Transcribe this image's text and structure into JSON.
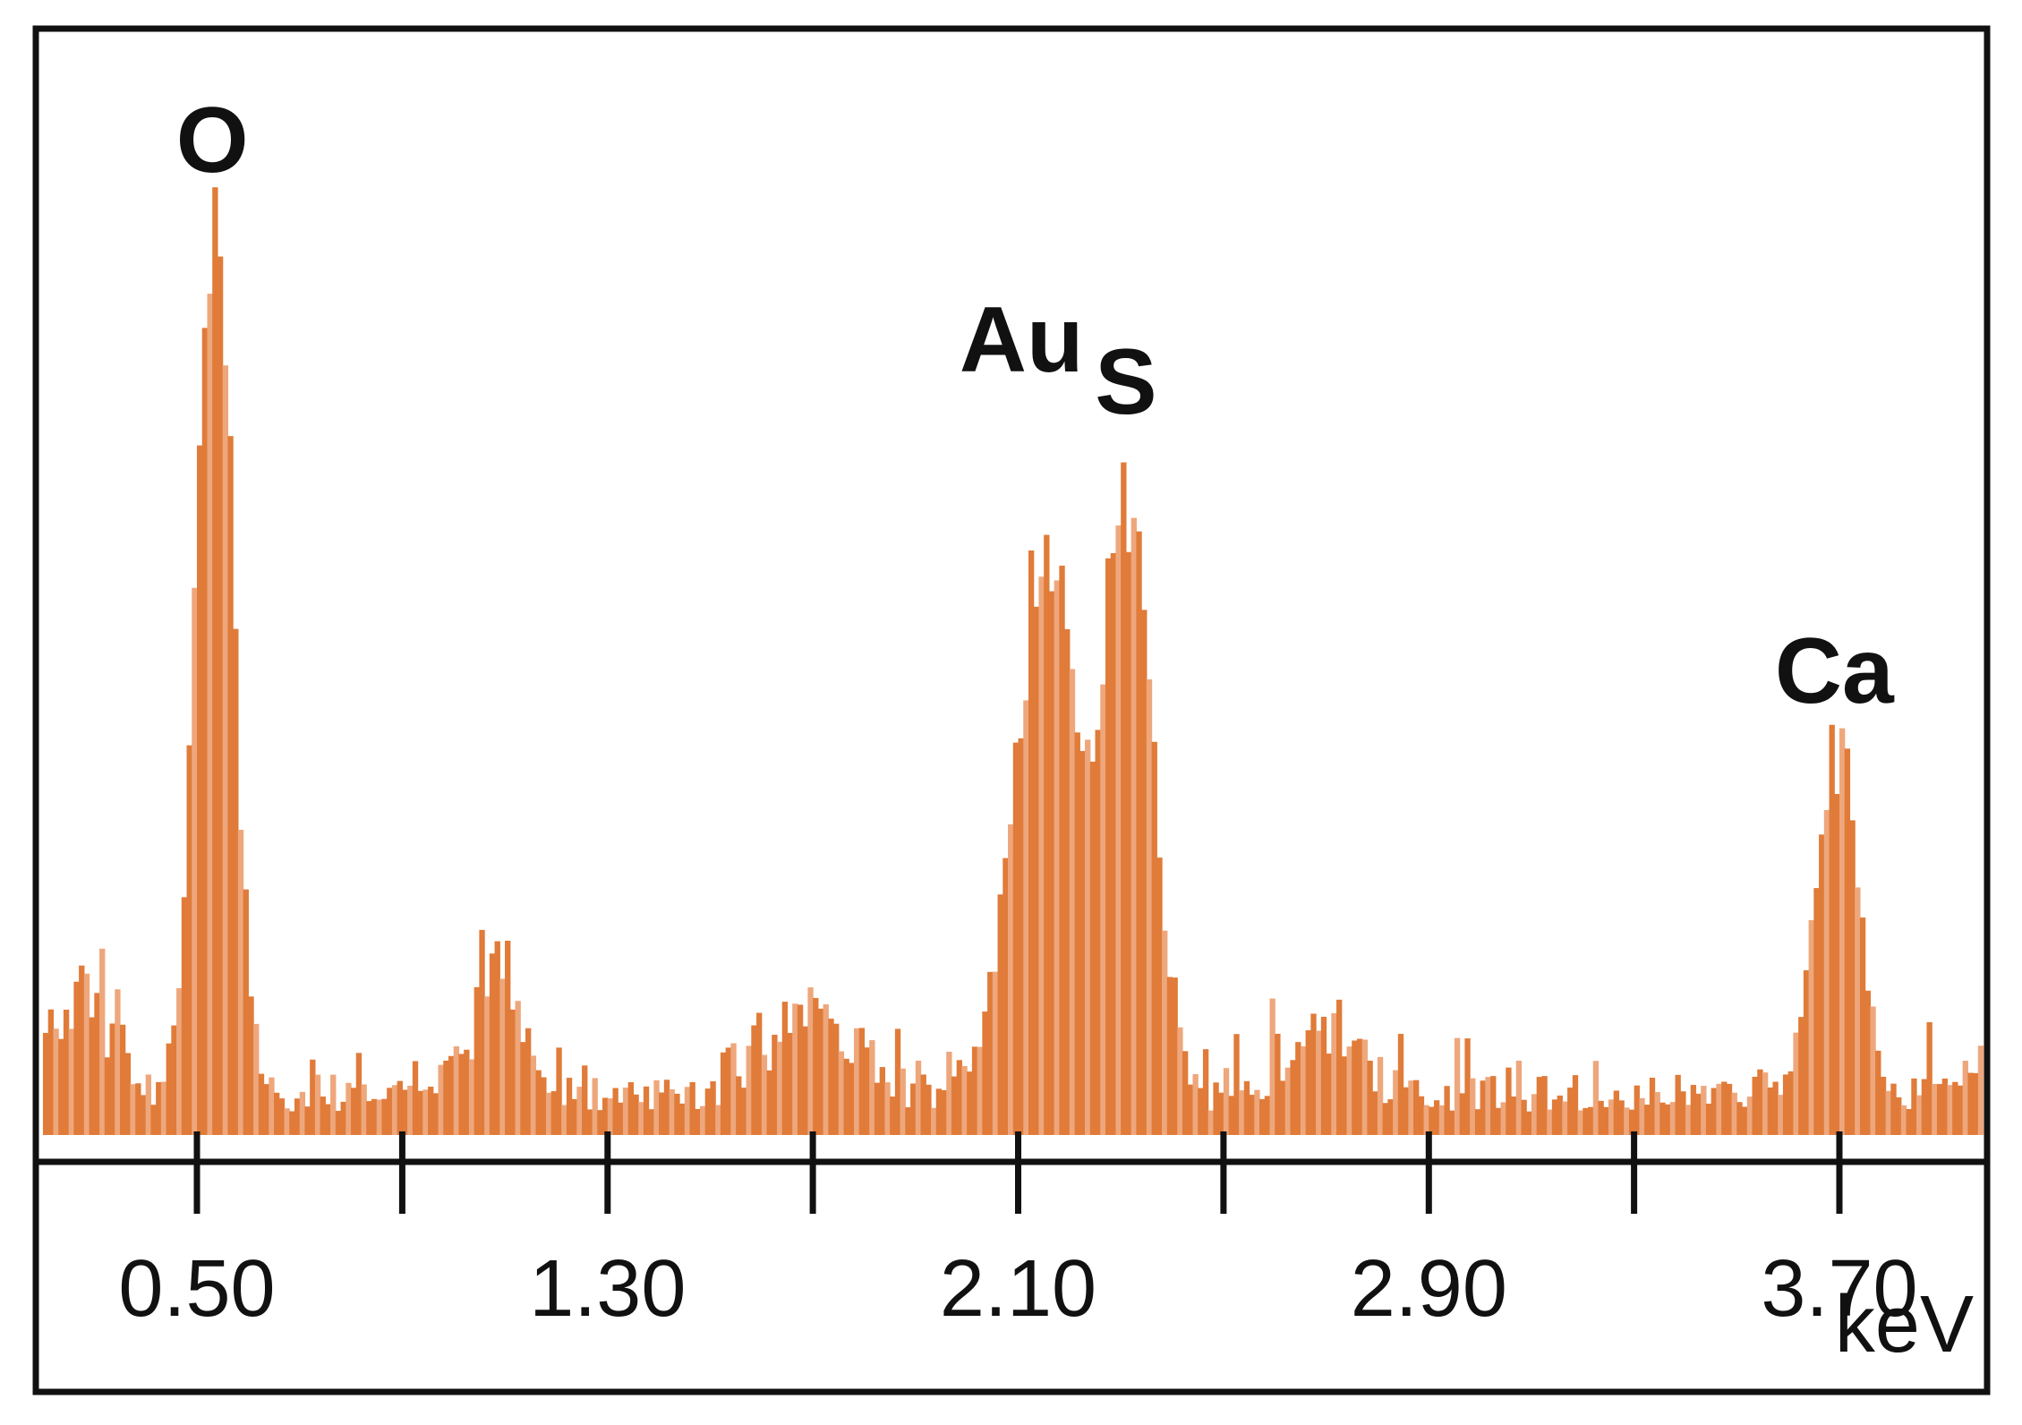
{
  "chart_data": {
    "type": "bar",
    "title": "",
    "xlabel": "keV",
    "ylabel": "",
    "xlim": [
      0.18,
      4.43
    ],
    "ylim": [
      0,
      1.2
    ],
    "grid": false,
    "legend": "none",
    "colors": {
      "bars": "#e07b39",
      "bars_light": "#eea77c",
      "axis": "#111111",
      "frame": "#111111",
      "background": "#ffffff"
    },
    "x_ticks": [
      0.5,
      0.9,
      1.3,
      1.7,
      2.1,
      2.5,
      2.9,
      3.3,
      3.7,
      4.1
    ],
    "x_tick_labels": [
      {
        "x": 0.5,
        "label": "0.50"
      },
      {
        "x": 1.3,
        "label": "1.30"
      },
      {
        "x": 2.1,
        "label": "2.10"
      },
      {
        "x": 2.9,
        "label": "2.90"
      },
      {
        "x": 3.7,
        "label": "3.70"
      }
    ],
    "peaks": [
      {
        "element": "O",
        "energy_kev": 0.53,
        "intensity": 1.0
      },
      {
        "element": "Au",
        "energy_kev": 2.15,
        "intensity": 0.76
      },
      {
        "element": "S",
        "energy_kev": 2.31,
        "intensity": 0.73
      },
      {
        "element": "Ca",
        "energy_kev": 3.69,
        "intensity": 0.41
      }
    ],
    "spectrum": {
      "x_start": 0.19,
      "x_end": 4.43,
      "x_step": 0.01,
      "background_level": 0.045,
      "minor_bumps": [
        {
          "energy_kev": 0.27,
          "intensity": 0.12,
          "width": 0.06
        },
        {
          "energy_kev": 1.08,
          "intensity": 0.14,
          "width": 0.05
        },
        {
          "energy_kev": 1.7,
          "intensity": 0.12,
          "width": 0.07
        },
        {
          "energy_kev": 2.7,
          "intensity": 0.08,
          "width": 0.06
        },
        {
          "energy_kev": 4.02,
          "intensity": 0.07,
          "width": 0.06
        }
      ],
      "major_peaks": [
        {
          "energy_kev": 0.53,
          "intensity": 0.98,
          "width": 0.035
        },
        {
          "energy_kev": 2.15,
          "intensity": 0.58,
          "width": 0.06
        },
        {
          "energy_kev": 2.31,
          "intensity": 0.6,
          "width": 0.045
        },
        {
          "energy_kev": 3.69,
          "intensity": 0.38,
          "width": 0.04
        }
      ]
    }
  }
}
